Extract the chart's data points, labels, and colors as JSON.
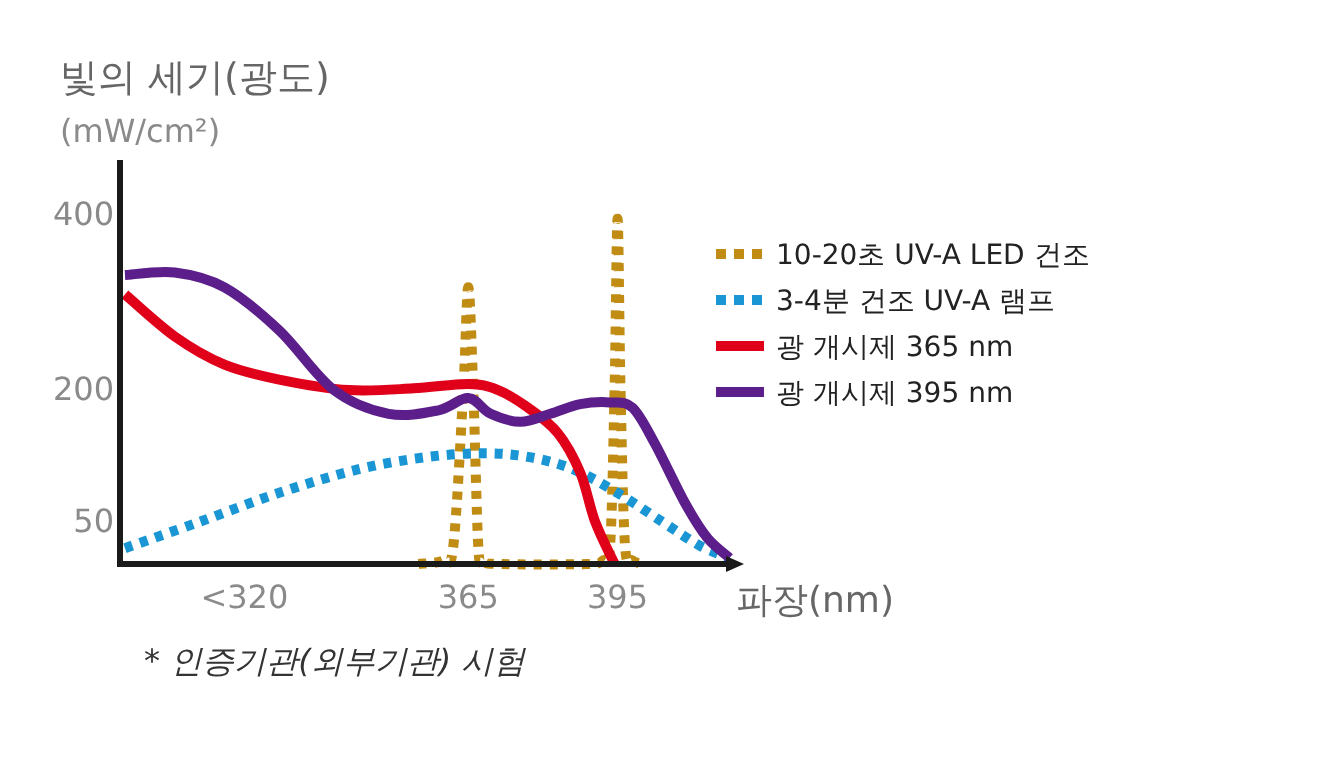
{
  "chart_data": {
    "type": "line",
    "ylabel": "빛의 세기(광도)\n(mW/cm²)",
    "xlabel": "파장(nm)",
    "annotations": [
      "* 인증기관(외부기관) 시험"
    ],
    "xlim": [
      295,
      418
    ],
    "xticks": [
      {
        "value": 320,
        "label": "<320"
      },
      365,
      395
    ],
    "ylim": [
      0,
      460
    ],
    "yticks": [
      50,
      200,
      400
    ],
    "grid": false,
    "legend": "right",
    "marker": "none",
    "series": [
      {
        "name": "10-20초 UV-A LED 건조",
        "color": "#c08c14",
        "line_style": "dotted",
        "x": [
          355,
          360,
          362,
          364,
          365,
          366,
          367,
          368,
          371,
          389,
          392,
          393.5,
          394.4,
          395,
          395.6,
          396.5,
          398,
          400.4
        ],
        "values": [
          0,
          4,
          21,
          198,
          315,
          198,
          21,
          4,
          0,
          0,
          4,
          21,
          198,
          393,
          198,
          21,
          4,
          0
        ]
      },
      {
        "name": "3-4분 건조 UV-A 램프",
        "color": "#1a96d4",
        "line_style": "dotted",
        "x": [
          296,
          311,
          327,
          343,
          357,
          368,
          377,
          386,
          395,
          404,
          411.5,
          417.5
        ],
        "values": [
          18,
          48,
          81,
          108,
          122,
          126,
          122,
          108,
          81,
          48,
          21,
          7
        ]
      },
      {
        "name": "광 개시제 365 nm",
        "color": "#e0001a",
        "line_style": "solid",
        "x": [
          296,
          306,
          316,
          327,
          341,
          354,
          365,
          371,
          377,
          383,
          387.5,
          390.5,
          394.4
        ],
        "values": [
          307,
          259,
          227,
          210,
          198,
          200,
          205,
          198,
          178,
          149,
          104,
          48,
          0
        ]
      },
      {
        "name": "광 개시제 395 nm",
        "color": "#5c1e8a",
        "line_style": "solid",
        "x": [
          296,
          306,
          316,
          327,
          338,
          349,
          359,
          365,
          369.5,
          375.5,
          381.5,
          387.5,
          393.5,
          398,
          402.5,
          408.5,
          413,
          417.5
        ],
        "values": [
          329,
          332,
          315,
          266,
          198,
          171,
          175,
          189,
          171,
          162,
          171,
          182,
          184,
          178,
          137,
          70,
          30,
          7
        ]
      }
    ]
  }
}
